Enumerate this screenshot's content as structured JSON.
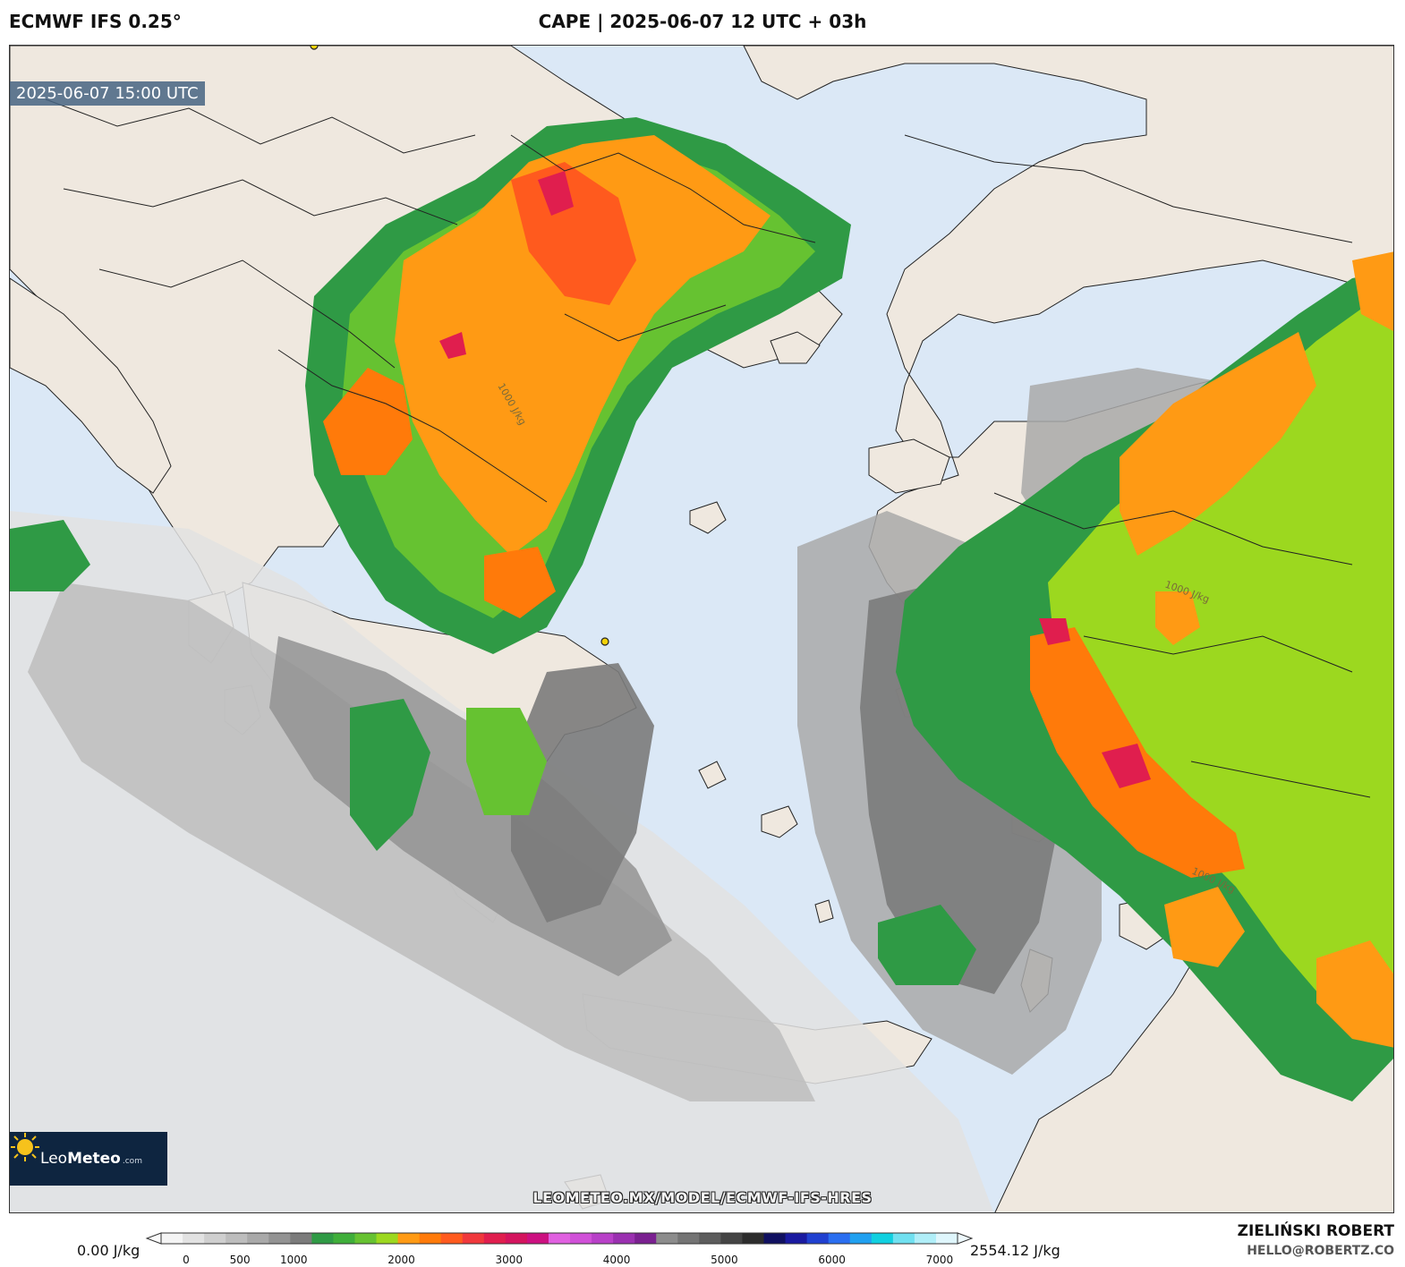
{
  "header": {
    "model": "ECMWF IFS 0.25°",
    "title": "CAPE | 2025-06-07 12 UTC + 03h"
  },
  "map": {
    "valid_time": "2025-06-07 15:00 UTC",
    "watermark": "LEOMETEO.MX/MODEL/ECMWF-IFS-HRES",
    "contour_label": "1000 J/kg",
    "station_markers": 2,
    "colors": {
      "sea": "#dbe8f6",
      "land": "#efe8df",
      "border": "#222222"
    }
  },
  "logo": {
    "name_light": "Leo",
    "name_bold": "Meteo",
    "suffix": ".com"
  },
  "colorbar": {
    "min_label": "0.00 J/kg",
    "max_label": "2554.12 J/kg",
    "ticks": [
      "0",
      "500",
      "1000",
      "2000",
      "3000",
      "4000",
      "5000",
      "6000",
      "7000"
    ],
    "tick_values": [
      0,
      500,
      1000,
      2000,
      3000,
      4000,
      5000,
      6000,
      7000
    ],
    "colors": [
      "#f4f4f4",
      "#e2e2e2",
      "#cfcfcf",
      "#bdbdbd",
      "#a9a9a9",
      "#939393",
      "#7b7b7b",
      "#2f9a45",
      "#3fae3a",
      "#66c231",
      "#9cd81f",
      "#ff9a14",
      "#ff7a0a",
      "#ff5a1e",
      "#f0383c",
      "#e01e4e",
      "#d4145e",
      "#cc1080",
      "#e060e0",
      "#d050d8",
      "#b840c8",
      "#9a30b0",
      "#7a2090",
      "#8c8c8c",
      "#747474",
      "#5c5c5c",
      "#444444",
      "#2c2c2c",
      "#101060",
      "#1a1aa0",
      "#2040d0",
      "#2a6ef0",
      "#20a0f0",
      "#10d0e0",
      "#70e0f0",
      "#b0eef8",
      "#dff6fc"
    ]
  },
  "credits": {
    "author": "ZIELIŃSKI ROBERT",
    "email": "HELLO@ROBERTZ.CO"
  }
}
